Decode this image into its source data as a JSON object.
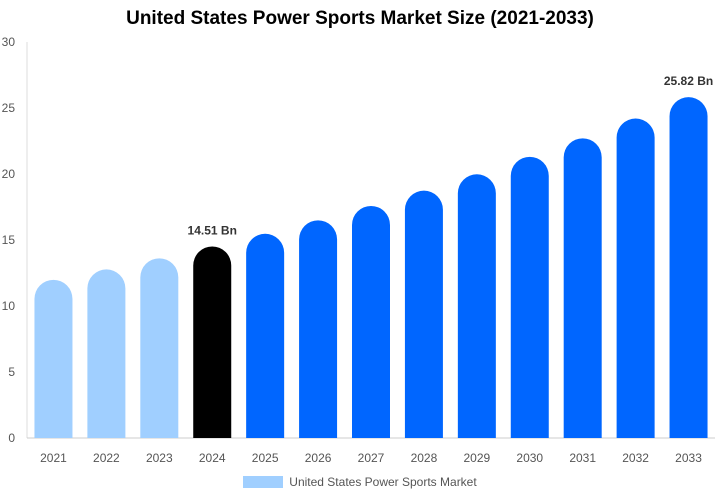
{
  "chart_data": {
    "type": "bar",
    "title": "United States Power Sports Market Size (2021-2033)",
    "categories": [
      "2021",
      "2022",
      "2023",
      "2024",
      "2025",
      "2026",
      "2027",
      "2028",
      "2029",
      "2030",
      "2031",
      "2032",
      "2033"
    ],
    "series": [
      {
        "name": "United States Power Sports Market",
        "values": [
          11.98,
          12.77,
          13.61,
          14.51,
          15.47,
          16.49,
          17.58,
          18.74,
          19.98,
          21.3,
          22.7,
          24.2,
          25.82
        ]
      }
    ],
    "data_labels": {
      "2024": "14.51 Bn",
      "2033": "25.82 Bn"
    },
    "ylim": [
      0,
      30
    ],
    "yticks": [
      0,
      5,
      10,
      15,
      20,
      25,
      30
    ],
    "grid": false,
    "legend": "bottom",
    "colors": {
      "historical": "#a0cfff",
      "base_year": "#000000",
      "forecast": "#0066ff"
    }
  }
}
